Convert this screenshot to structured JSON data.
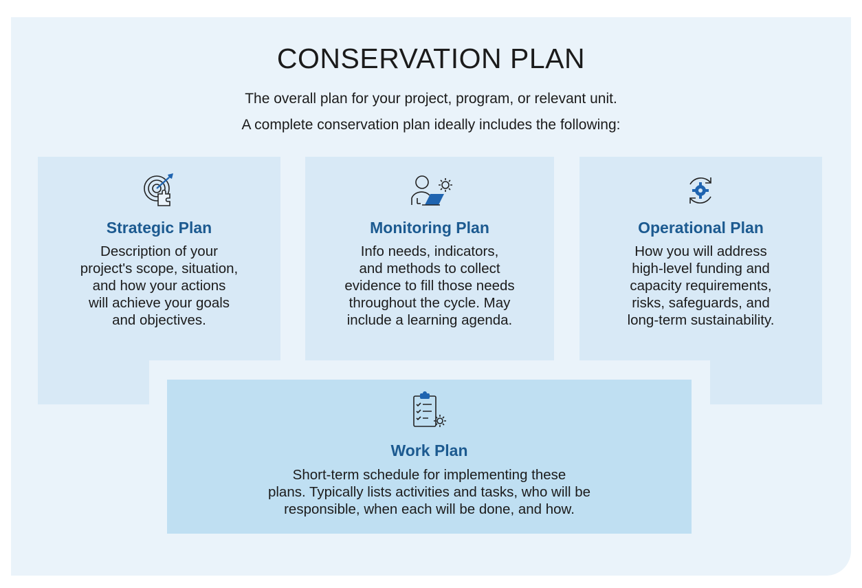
{
  "title": "CONSERVATION PLAN",
  "subtitle": {
    "line1": "The overall plan for your project, program, or relevant unit.",
    "line2": "A complete conservation plan ideally includes the following:"
  },
  "cards": {
    "strategic": {
      "icon": "target-puzzle-icon",
      "title": "Strategic Plan",
      "lines": [
        "Description of your",
        "project's scope, situation,",
        "and how your actions",
        "will achieve your goals",
        "and objectives."
      ]
    },
    "monitoring": {
      "icon": "person-laptop-gear-icon",
      "title": "Monitoring Plan",
      "lines": [
        "Info needs, indicators,",
        "and methods to collect",
        "evidence to fill those needs",
        "throughout the cycle. May",
        "include a learning agenda."
      ]
    },
    "operational": {
      "icon": "cycle-gear-icon",
      "title": "Operational Plan",
      "lines": [
        "How you will address",
        "high-level funding and",
        "capacity requirements,",
        "risks, safeguards, and",
        "long-term sustainability."
      ]
    },
    "work": {
      "icon": "clipboard-checklist-gear-icon",
      "title": "Work Plan",
      "lines": [
        "Short-term schedule for implementing these",
        "plans. Typically lists activities and tasks, who will be",
        "responsible, when each will be done, and how."
      ]
    }
  },
  "colors": {
    "background": "#eaf3fa",
    "card": "#d8e9f6",
    "work_card": "#bfdff2",
    "accent": "#1c5a90",
    "icon_fill": "#1f64b0"
  }
}
